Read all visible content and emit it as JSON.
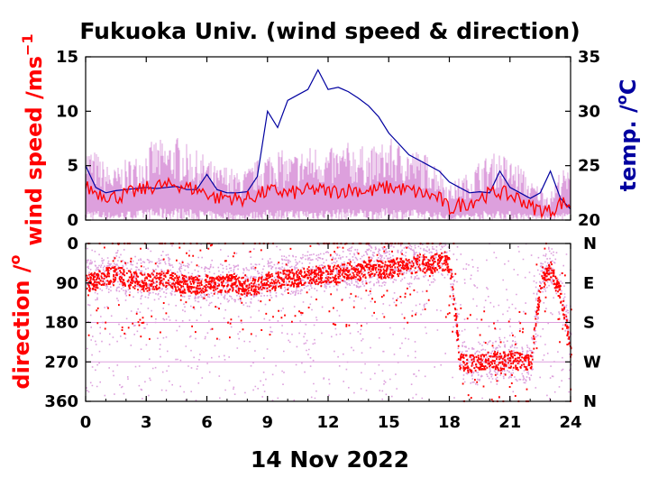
{
  "figure": {
    "title": "Fukuoka Univ. (wind speed & direction)",
    "date_label": "14 Nov 2022"
  },
  "colors": {
    "wind_raw": "#dda0dd",
    "wind_mean": "#ff0000",
    "temperature": "#0000a0",
    "direction_raw": "#dda0dd",
    "direction_mean": "#ff0000",
    "gridline": "#dda0dd"
  },
  "chart_data": [
    {
      "type": "line",
      "panel": "top",
      "title": "Fukuoka Univ. (wind speed & direction)",
      "xlabel": "14 Nov 2022",
      "ylabel": "wind speed /ms",
      "ylabel_sup": "−1",
      "y2label": "temp. /",
      "y2label_sup": "o",
      "y2label_unit": "C",
      "xlim": [
        0,
        24
      ],
      "ylim": [
        0,
        15
      ],
      "y2lim": [
        20,
        35
      ],
      "xticks": [
        0,
        3,
        6,
        9,
        12,
        15,
        18,
        21,
        24
      ],
      "yticks": [
        0,
        5,
        10,
        15
      ],
      "y2ticks": [
        20,
        25,
        30,
        35
      ],
      "series": [
        {
          "axis": "left",
          "style": "dense-raw-band",
          "x": [
            0,
            0.5,
            1,
            1.5,
            2,
            2.5,
            3,
            3.5,
            4,
            4.5,
            5,
            5.5,
            6,
            6.5,
            7,
            7.5,
            8,
            8.5,
            9,
            9.5,
            10,
            10.5,
            11,
            11.5,
            12,
            12.5,
            13,
            13.5,
            14,
            14.5,
            15,
            15.5,
            16,
            16.5,
            17,
            17.5,
            18,
            18.5,
            19,
            19.5,
            20,
            20.5,
            21,
            21.5,
            22,
            22.5,
            23,
            23.5,
            24
          ],
          "values": [
            3.5,
            3.2,
            2.6,
            2.4,
            2.8,
            3.0,
            3.4,
            3.8,
            3.6,
            3.9,
            3.5,
            3.2,
            3.0,
            2.4,
            2.6,
            2.2,
            2.4,
            2.8,
            3.2,
            3.4,
            3.0,
            3.2,
            3.4,
            3.5,
            3.3,
            3.4,
            3.6,
            3.5,
            3.3,
            3.5,
            3.8,
            3.6,
            3.4,
            3.2,
            3.0,
            2.6,
            1.6,
            2.0,
            2.2,
            2.8,
            3.0,
            3.2,
            2.8,
            2.6,
            1.8,
            1.6,
            1.2,
            2.4,
            2.2
          ]
        },
        {
          "axis": "left",
          "style": "mean",
          "x": [
            0,
            0.5,
            1,
            1.5,
            2,
            2.5,
            3,
            3.5,
            4,
            4.5,
            5,
            5.5,
            6,
            6.5,
            7,
            7.5,
            8,
            8.5,
            9,
            9.5,
            10,
            10.5,
            11,
            11.5,
            12,
            12.5,
            13,
            13.5,
            14,
            14.5,
            15,
            15.5,
            16,
            16.5,
            17,
            17.5,
            18,
            18.5,
            19,
            19.5,
            20,
            20.5,
            21,
            21.5,
            22,
            22.5,
            23,
            23.5,
            24
          ],
          "values": [
            3.0,
            2.6,
            2.3,
            2.1,
            2.4,
            2.6,
            2.9,
            3.2,
            3.1,
            3.3,
            3.0,
            2.8,
            2.5,
            2.0,
            2.2,
            1.9,
            2.0,
            2.3,
            2.6,
            2.7,
            2.4,
            2.6,
            2.7,
            2.8,
            2.6,
            2.7,
            2.8,
            2.8,
            2.6,
            2.8,
            3.0,
            2.9,
            2.7,
            2.5,
            2.3,
            2.0,
            1.0,
            1.4,
            1.6,
            2.1,
            2.4,
            2.6,
            2.2,
            2.0,
            1.2,
            1.0,
            0.8,
            1.6,
            1.4
          ]
        },
        {
          "axis": "right",
          "style": "temperature",
          "x": [
            0,
            0.5,
            1,
            1.5,
            2,
            2.5,
            3,
            3.5,
            4,
            4.5,
            5,
            5.5,
            6,
            6.5,
            7,
            7.5,
            8,
            8.5,
            9,
            9.5,
            10,
            10.5,
            11,
            11.5,
            12,
            12.5,
            13,
            13.5,
            14,
            14.5,
            15,
            15.5,
            16,
            16.5,
            17,
            17.5,
            18,
            18.5,
            19,
            19.5,
            20,
            20.5,
            21,
            21.5,
            22,
            22.5,
            23,
            23.5,
            24
          ],
          "values": [
            25.0,
            23.0,
            22.5,
            22.7,
            22.8,
            22.9,
            23.0,
            22.9,
            23.0,
            23.1,
            22.8,
            22.8,
            24.2,
            22.8,
            22.5,
            22.5,
            22.6,
            24.0,
            30.0,
            28.5,
            31.0,
            31.5,
            32.0,
            33.8,
            32.0,
            32.2,
            31.8,
            31.2,
            30.5,
            29.5,
            28.0,
            27.0,
            26.0,
            25.5,
            25.0,
            24.5,
            23.5,
            23.0,
            22.5,
            22.6,
            22.5,
            24.5,
            23.0,
            22.5,
            22.0,
            22.5,
            24.5,
            22.0,
            21.0
          ]
        }
      ]
    },
    {
      "type": "scatter",
      "panel": "bottom",
      "ylabel": "direction /",
      "ylabel_sup": "o",
      "xlim": [
        0,
        24
      ],
      "ylim": [
        360,
        0
      ],
      "xticks": [
        0,
        3,
        6,
        9,
        12,
        15,
        18,
        21,
        24
      ],
      "yticks": [
        0,
        90,
        180,
        270,
        360
      ],
      "y2tick_labels": [
        "N",
        "E",
        "S",
        "W",
        "N"
      ],
      "gridlines": [
        180,
        270
      ],
      "series": [
        {
          "style": "raw-points",
          "x": [
            0,
            0.5,
            1,
            1.5,
            2,
            2.5,
            3,
            3.5,
            4,
            4.5,
            5,
            5.5,
            6,
            6.5,
            7,
            7.5,
            8,
            8.5,
            9,
            9.5,
            10,
            10.5,
            11,
            11.5,
            12,
            12.5,
            13,
            13.5,
            14,
            14.5,
            15,
            15.5,
            16,
            16.5,
            17,
            17.5,
            18,
            18.5,
            19,
            19.5,
            20,
            20.5,
            21,
            21.5,
            22,
            22.5,
            23,
            23.5,
            24
          ],
          "values": [
            80,
            85,
            70,
            65,
            75,
            80,
            80,
            85,
            70,
            75,
            80,
            90,
            95,
            90,
            85,
            90,
            100,
            90,
            80,
            75,
            70,
            75,
            60,
            70,
            60,
            70,
            50,
            60,
            45,
            55,
            50,
            40,
            50,
            40,
            50,
            30,
            40,
            260,
            280,
            270,
            265,
            270,
            260,
            275,
            270,
            80,
            50,
            100,
            240
          ]
        },
        {
          "style": "mean-points",
          "x": [
            0,
            0.5,
            1,
            1.5,
            2,
            2.5,
            3,
            3.5,
            4,
            4.5,
            5,
            5.5,
            6,
            6.5,
            7,
            7.5,
            8,
            8.5,
            9,
            9.5,
            10,
            10.5,
            11,
            11.5,
            12,
            12.5,
            13,
            13.5,
            14,
            14.5,
            15,
            15.5,
            16,
            16.5,
            17,
            17.5,
            18,
            18.5,
            19,
            19.5,
            20,
            20.5,
            21,
            21.5,
            22,
            22.5,
            23,
            23.5,
            24
          ],
          "values": [
            90,
            85,
            75,
            70,
            80,
            85,
            90,
            85,
            80,
            90,
            95,
            95,
            90,
            95,
            90,
            95,
            100,
            95,
            90,
            85,
            75,
            80,
            70,
            75,
            70,
            70,
            60,
            65,
            55,
            60,
            60,
            50,
            55,
            45,
            50,
            40,
            50,
            270,
            275,
            270,
            265,
            270,
            265,
            270,
            275,
            90,
            60,
            120,
            250
          ]
        }
      ]
    }
  ]
}
